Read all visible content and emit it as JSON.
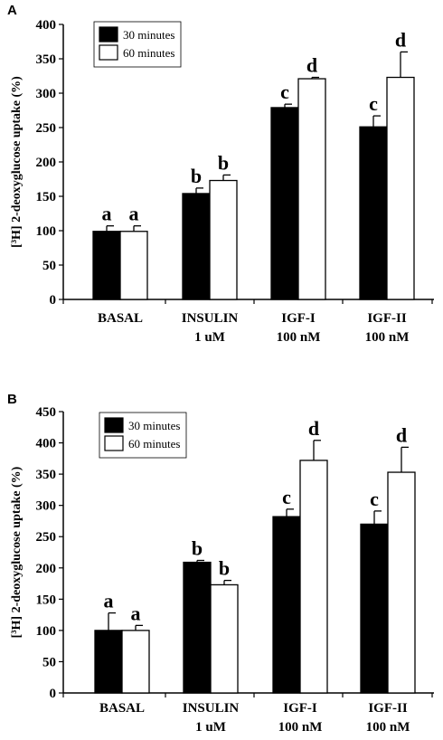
{
  "chart_data": [
    {
      "type": "bar",
      "panel": "A",
      "ylabel": "[³H] 2-deoxyglucose uptake (%)",
      "ylim": [
        0,
        400
      ],
      "yticks": [
        0,
        50,
        100,
        150,
        200,
        250,
        300,
        350,
        400
      ],
      "legend_placement": "top-left",
      "categories": [
        [
          "BASAL"
        ],
        [
          "INSULIN",
          "1 uM"
        ],
        [
          "IGF-I",
          "100 nM"
        ],
        [
          "IGF-II",
          "100 nM"
        ]
      ],
      "series": [
        {
          "name": "30 minutes",
          "color": "#000000",
          "values": [
            99,
            154,
            279,
            251
          ],
          "errors": [
            8,
            8,
            5,
            16
          ],
          "letters": [
            "a",
            "b",
            "c",
            "c"
          ]
        },
        {
          "name": "60 minutes",
          "color": "#ffffff",
          "values": [
            99,
            173,
            321,
            323
          ],
          "errors": [
            8,
            8,
            2,
            37
          ],
          "letters": [
            "a",
            "b",
            "d",
            "d"
          ]
        }
      ]
    },
    {
      "type": "bar",
      "panel": "B",
      "ylabel": "[³H] 2-deoxyglucose uptake (%)",
      "ylim": [
        0,
        450
      ],
      "yticks": [
        0,
        50,
        100,
        150,
        200,
        250,
        300,
        350,
        400,
        450
      ],
      "legend_placement": "top-left",
      "categories": [
        [
          "BASAL"
        ],
        [
          "INSULIN",
          "1 uM"
        ],
        [
          "IGF-I",
          "100 nM"
        ],
        [
          "IGF-II",
          "100 nM"
        ]
      ],
      "series": [
        {
          "name": "30 minutes",
          "color": "#000000",
          "values": [
            100,
            209,
            282,
            270
          ],
          "errors": [
            28,
            3,
            12,
            21
          ],
          "letters": [
            "a",
            "b",
            "c",
            "c"
          ]
        },
        {
          "name": "60 minutes",
          "color": "#ffffff",
          "values": [
            100,
            173,
            372,
            353
          ],
          "errors": [
            8,
            7,
            32,
            40
          ],
          "letters": [
            "a",
            "b",
            "d",
            "d"
          ]
        }
      ]
    }
  ]
}
